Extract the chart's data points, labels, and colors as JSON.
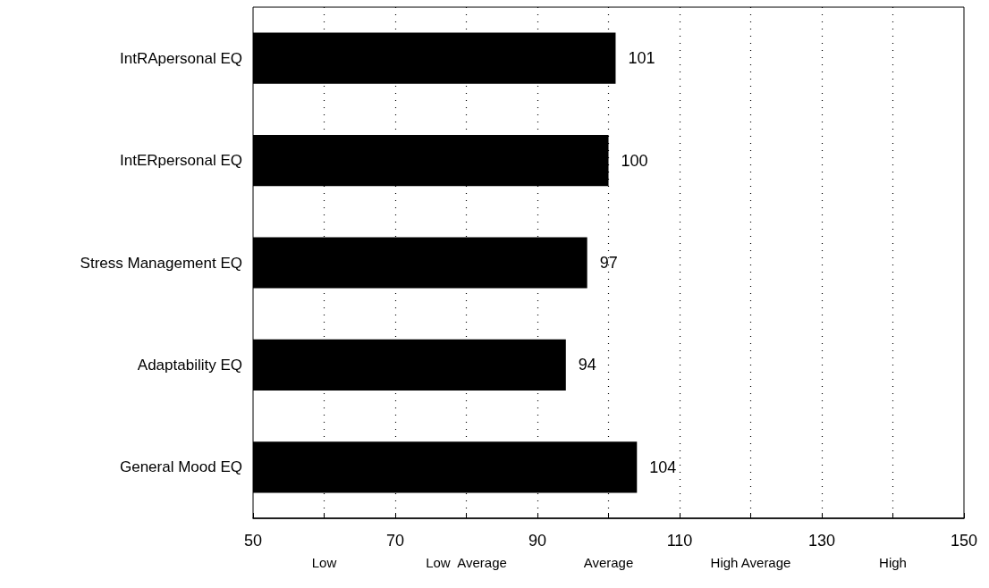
{
  "chart_data": {
    "type": "bar",
    "orientation": "horizontal",
    "categories": [
      "IntRApersonal EQ",
      "IntERpersonal EQ",
      "Stress Management EQ",
      "Adaptability EQ",
      "General Mood EQ"
    ],
    "values": [
      101,
      100,
      97,
      94,
      104
    ],
    "color": "#000000",
    "data_labels": true,
    "xlim": [
      50,
      150
    ],
    "xticks": [
      50,
      {
        "value": 60,
        "label": null
      },
      70,
      {
        "value": 80,
        "label": null
      },
      90,
      {
        "value": 100,
        "label": null
      },
      110,
      {
        "value": 120,
        "label": null
      },
      130,
      {
        "value": 140,
        "label": null
      },
      150
    ],
    "annotations": [
      "Low",
      "Low  Average",
      "Average",
      "High Average",
      "High"
    ],
    "grid": "x"
  }
}
